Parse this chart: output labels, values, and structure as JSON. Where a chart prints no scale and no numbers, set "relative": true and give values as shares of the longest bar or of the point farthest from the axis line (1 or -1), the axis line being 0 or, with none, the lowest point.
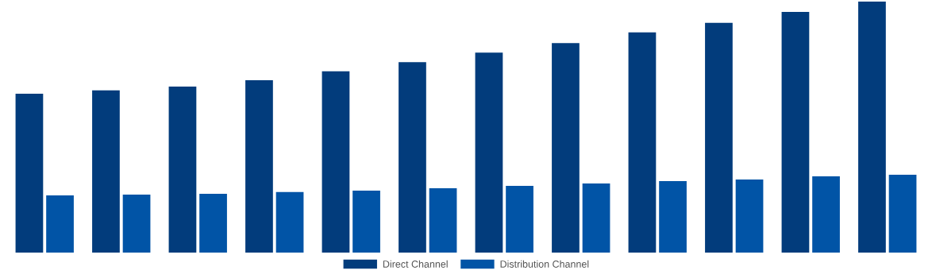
{
  "chart_data": {
    "type": "bar",
    "relative": true,
    "categories": [
      null,
      null,
      null,
      null,
      null,
      null,
      null,
      null,
      null,
      null,
      null,
      null
    ],
    "series": [
      {
        "name": "Direct Channel",
        "color": "#023c7c",
        "values": [
          0.633,
          0.646,
          0.661,
          0.687,
          0.722,
          0.759,
          0.797,
          0.835,
          0.877,
          0.915,
          0.959,
          1
        ]
      },
      {
        "name": "Distribution Channel",
        "color": "#0154a6",
        "values": [
          0.228,
          0.231,
          0.234,
          0.241,
          0.247,
          0.256,
          0.266,
          0.275,
          0.285,
          0.291,
          0.304,
          0.31
        ]
      }
    ],
    "legend": "bottom",
    "grid": false
  }
}
